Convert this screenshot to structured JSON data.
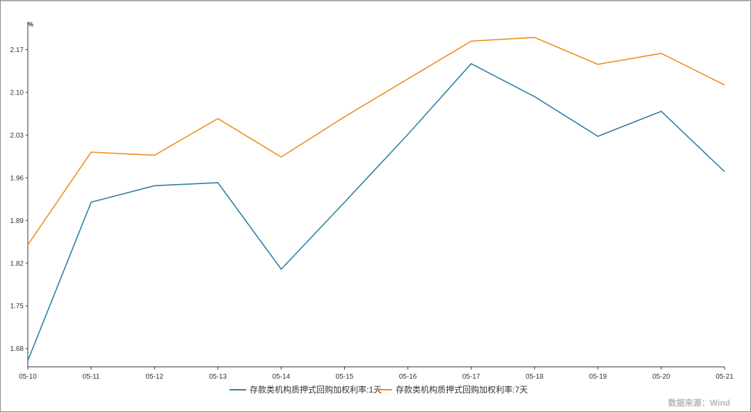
{
  "chart_data": {
    "type": "line",
    "title": "",
    "xlabel": "",
    "ylabel": "",
    "unit": "%",
    "categories": [
      "05-10",
      "05-11",
      "05-12",
      "05-13",
      "05-14",
      "05-15",
      "05-16",
      "05-17",
      "05-18",
      "05-19",
      "05-20",
      "05-21"
    ],
    "yticks": [
      "1.68",
      "1.75",
      "1.82",
      "1.89",
      "1.96",
      "2.03",
      "2.10",
      "2.17"
    ],
    "ylim": [
      1.65,
      2.215
    ],
    "grid": false,
    "legend_position": "bottom",
    "series": [
      {
        "name": "存款类机构质押式回购加权利率:1天",
        "color": "#2e7fa3",
        "values": [
          1.66,
          1.92,
          1.947,
          1.952,
          1.81,
          1.92,
          2.031,
          2.147,
          2.093,
          2.028,
          2.069,
          1.97
        ]
      },
      {
        "name": "存款类机构质押式回购加权利率:7天",
        "color": "#f08c1e",
        "values": [
          1.85,
          2.002,
          1.997,
          2.057,
          1.994,
          2.06,
          2.122,
          2.184,
          2.19,
          2.146,
          2.164,
          2.112
        ]
      }
    ],
    "source": "数据来源：Wind"
  }
}
